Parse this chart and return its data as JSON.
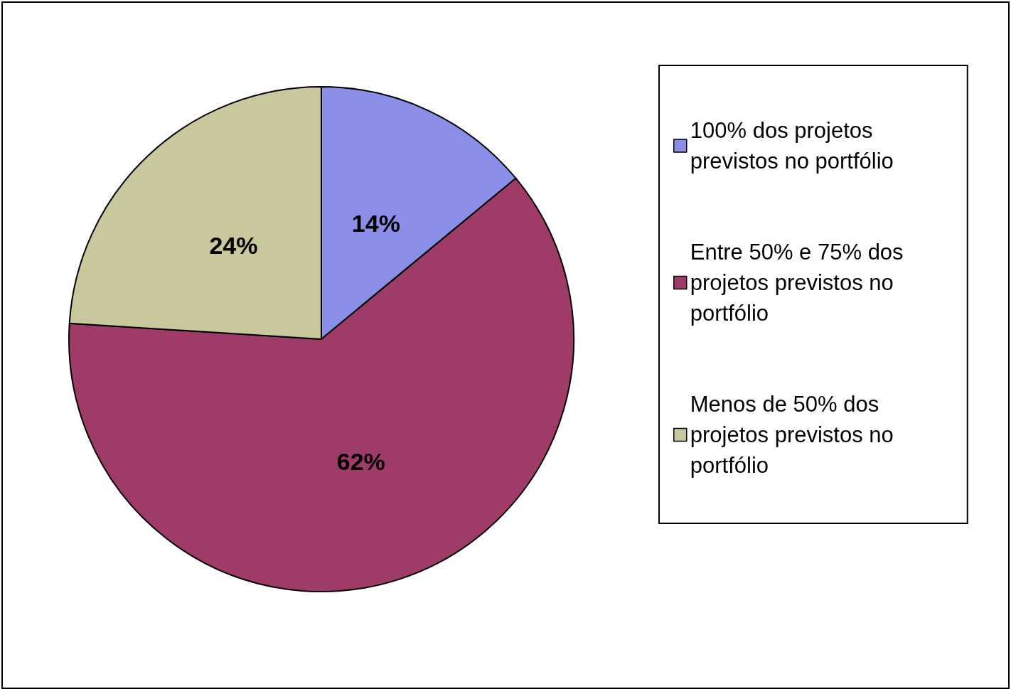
{
  "chart_data": {
    "type": "pie",
    "categories": [
      "100% dos projetos previstos no portfólio",
      "Entre 50% e 75% dos projetos previstos no portfólio",
      "Menos de 50% dos projetos previstos no portfólio"
    ],
    "values": [
      14,
      62,
      24
    ],
    "colors": [
      "#8a8ee6",
      "#9e3b68",
      "#c9c89c"
    ],
    "value_labels": [
      "14%",
      "62%",
      "24%"
    ],
    "legend": "right"
  }
}
